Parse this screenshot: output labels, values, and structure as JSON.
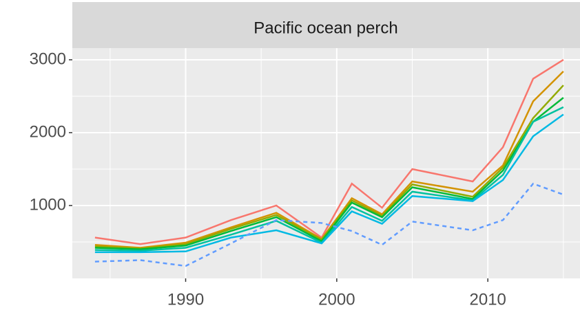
{
  "chart_data": {
    "type": "line",
    "title": "Pacific ocean perch",
    "x": [
      1984,
      1987,
      1990,
      1993,
      1996,
      1999,
      2001,
      2003,
      2005,
      2009,
      2011,
      2013,
      2015
    ],
    "series": [
      {
        "color": "#F8766D",
        "dash": false,
        "values": [
          560,
          470,
          560,
          800,
          1000,
          560,
          1300,
          970,
          1500,
          1330,
          1800,
          2740,
          3000
        ]
      },
      {
        "color": "#D39200",
        "dash": false,
        "values": [
          460,
          420,
          490,
          700,
          900,
          540,
          1100,
          880,
          1330,
          1190,
          1550,
          2430,
          2840
        ]
      },
      {
        "color": "#93AA00",
        "dash": false,
        "values": [
          440,
          410,
          470,
          680,
          870,
          530,
          1070,
          860,
          1290,
          1120,
          1520,
          2200,
          2650
        ]
      },
      {
        "color": "#00BA38",
        "dash": false,
        "values": [
          420,
          400,
          450,
          650,
          840,
          510,
          1040,
          840,
          1250,
          1090,
          1480,
          2150,
          2480
        ]
      },
      {
        "color": "#00C19F",
        "dash": false,
        "values": [
          390,
          380,
          420,
          600,
          790,
          490,
          980,
          790,
          1190,
          1070,
          1420,
          2150,
          2350
        ]
      },
      {
        "color": "#00B9E3",
        "dash": false,
        "values": [
          360,
          360,
          370,
          560,
          660,
          480,
          920,
          750,
          1130,
          1060,
          1350,
          1950,
          2250
        ]
      },
      {
        "color": "#619CFF",
        "dash": true,
        "values": [
          230,
          250,
          170,
          480,
          800,
          760,
          650,
          460,
          780,
          660,
          800,
          1300,
          1150
        ]
      }
    ],
    "xlim": [
      1982.5,
      2016.1
    ],
    "xticks": [
      1990,
      2000,
      2010
    ],
    "xticks_minor": [
      1985,
      1995,
      2005,
      2015
    ],
    "ylim": [
      0,
      3160
    ],
    "yticks": [
      1000,
      2000,
      3000
    ],
    "yticks_minor": [
      500,
      1500,
      2500
    ],
    "grid": true
  }
}
